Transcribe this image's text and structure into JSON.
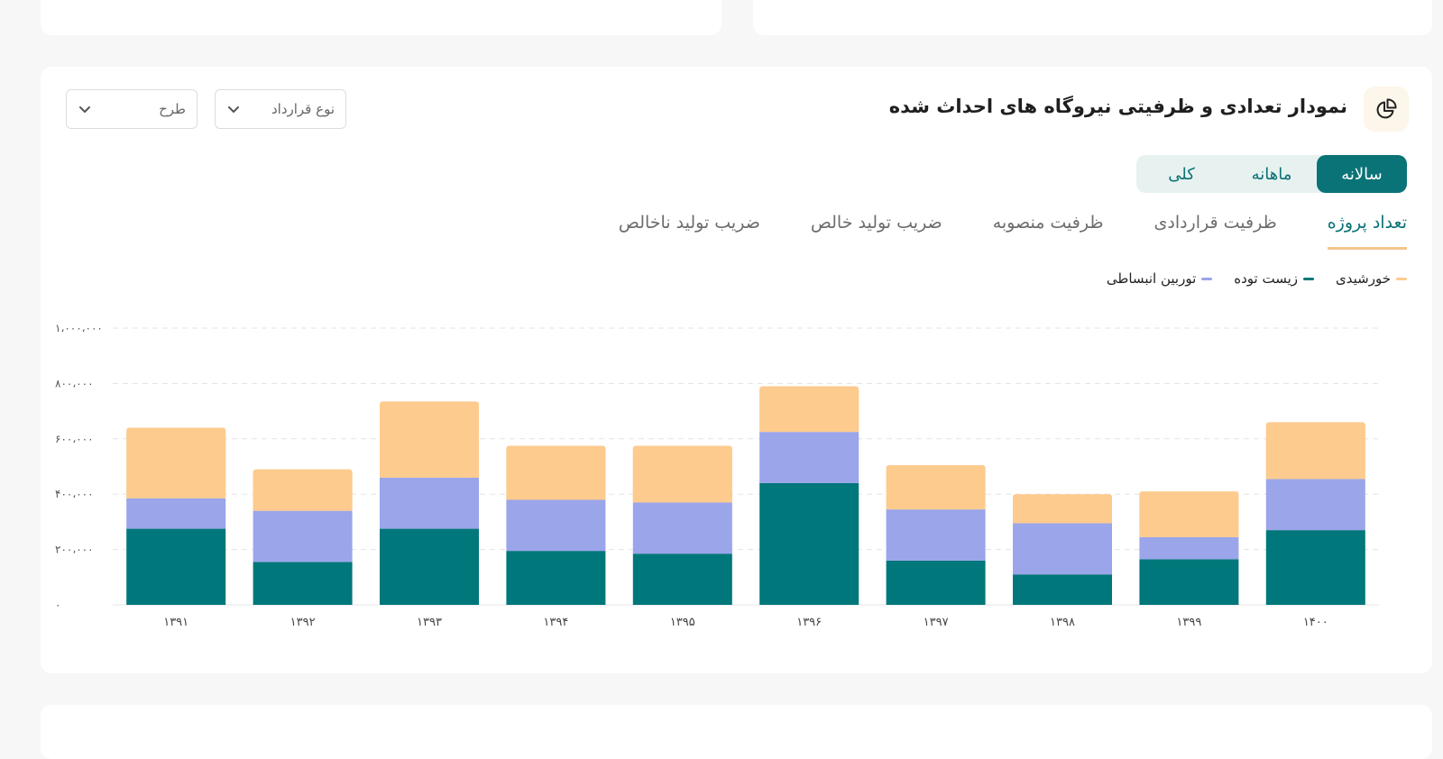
{
  "chart_card": {
    "title": "نمودار تعدادی و ظرفیتی نیروگاه های احداث شده",
    "icon": "pie-chart-icon",
    "filters": {
      "contract_type": "نوع قرارداد",
      "plan": "طرح"
    },
    "period_tabs": [
      {
        "label": "سالانه",
        "active": true
      },
      {
        "label": "ماهانه",
        "active": false
      },
      {
        "label": "کلی",
        "active": false
      }
    ],
    "metric_tabs": [
      {
        "label": "تعداد پروژه",
        "active": true
      },
      {
        "label": "ظرفیت قراردادی",
        "active": false
      },
      {
        "label": "ظرفیت منصوبه",
        "active": false
      },
      {
        "label": "ضریب تولید خالص",
        "active": false
      },
      {
        "label": "ضریب تولید ناخالص",
        "active": false
      }
    ]
  },
  "colors": {
    "accent": "#0a7377",
    "solar": "#fdcb8e",
    "biomass": "#00777b",
    "expansion_turbine": "#9aa5ea"
  },
  "chart_data": {
    "type": "bar",
    "stacked": true,
    "categories": [
      "۱۳۹۱",
      "۱۳۹۲",
      "۱۳۹۳",
      "۱۳۹۴",
      "۱۳۹۵",
      "۱۳۹۶",
      "۱۳۹۷",
      "۱۳۹۸",
      "۱۳۹۹",
      "۱۴۰۰"
    ],
    "series": [
      {
        "name": "زیست توده",
        "color": "#00777b",
        "values": [
          275000,
          155000,
          275000,
          195000,
          185000,
          440000,
          160000,
          110000,
          165000,
          270000
        ]
      },
      {
        "name": "توربین انبساطی",
        "color": "#9aa5ea",
        "values": [
          110000,
          185000,
          185000,
          185000,
          185000,
          185000,
          185000,
          185000,
          80000,
          185000
        ]
      },
      {
        "name": "خورشیدی",
        "color": "#fdcb8e",
        "values": [
          255000,
          150000,
          275000,
          195000,
          205000,
          165000,
          160000,
          105000,
          165000,
          205000
        ]
      }
    ],
    "y_ticks": [
      "۰",
      "۲۰۰،۰۰۰",
      "۴۰۰،۰۰۰",
      "۶۰۰،۰۰۰",
      "۸۰۰،۰۰۰",
      "۱،۰۰۰،۰۰۰"
    ],
    "ylim": [
      0,
      1000000
    ],
    "grid": true,
    "legend_position": "top-right",
    "title": "",
    "xlabel": "",
    "ylabel": ""
  }
}
